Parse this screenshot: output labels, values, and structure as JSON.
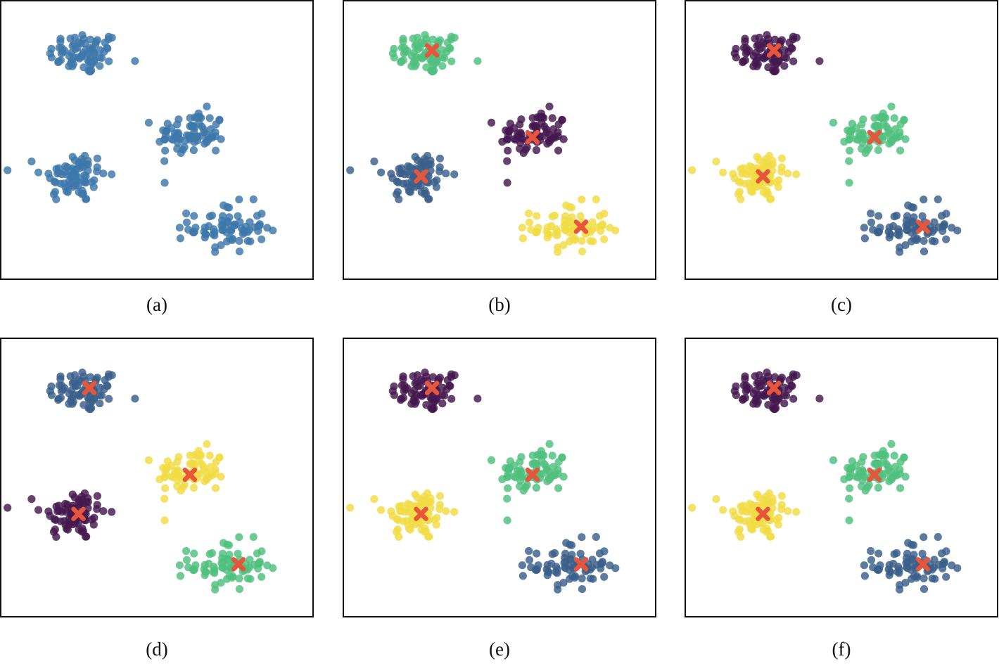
{
  "colors": {
    "viridis_purple": "#44194f",
    "viridis_blue": "#3a5f8a",
    "viridis_green": "#4fbf7e",
    "viridis_yellow": "#f1dc46",
    "raw_blue": "#3d77aa",
    "centroid": "#e8553a"
  },
  "chart_data": [
    {
      "type": "scatter",
      "caption": "(a)",
      "xlim": [
        0,
        10
      ],
      "ylim": [
        0,
        10
      ],
      "grid": false,
      "legend": "none",
      "series": [
        {
          "color_key": "raw_blue",
          "cluster": 0
        },
        {
          "color_key": "raw_blue",
          "cluster": 1
        },
        {
          "color_key": "raw_blue",
          "cluster": 2
        },
        {
          "color_key": "raw_blue",
          "cluster": 3
        }
      ],
      "centroids": []
    },
    {
      "type": "scatter",
      "caption": "(b)",
      "xlim": [
        0,
        10
      ],
      "ylim": [
        0,
        10
      ],
      "grid": false,
      "legend": "none",
      "series": [
        {
          "color_key": "viridis_green",
          "cluster": 0
        },
        {
          "color_key": "viridis_blue",
          "cluster": 1
        },
        {
          "color_key": "viridis_purple",
          "cluster": 2
        },
        {
          "color_key": "viridis_yellow",
          "cluster": 3
        }
      ],
      "centroids": [
        [
          2.85,
          8.2
        ],
        [
          2.5,
          3.7
        ],
        [
          6.05,
          5.1
        ],
        [
          7.6,
          1.9
        ]
      ]
    },
    {
      "type": "scatter",
      "caption": "(c)",
      "xlim": [
        0,
        10
      ],
      "ylim": [
        0,
        10
      ],
      "grid": false,
      "legend": "none",
      "series": [
        {
          "color_key": "viridis_purple",
          "cluster": 0
        },
        {
          "color_key": "viridis_yellow",
          "cluster": 1
        },
        {
          "color_key": "viridis_green",
          "cluster": 2
        },
        {
          "color_key": "viridis_blue",
          "cluster": 3
        }
      ],
      "centroids": [
        [
          2.85,
          8.2
        ],
        [
          2.5,
          3.7
        ],
        [
          6.05,
          5.1
        ],
        [
          7.6,
          1.9
        ]
      ]
    },
    {
      "type": "scatter",
      "caption": "(d)",
      "xlim": [
        0,
        10
      ],
      "ylim": [
        0,
        10
      ],
      "grid": false,
      "legend": "none",
      "series": [
        {
          "color_key": "viridis_blue",
          "cluster": 0
        },
        {
          "color_key": "viridis_purple",
          "cluster": 1
        },
        {
          "color_key": "viridis_yellow",
          "cluster": 2
        },
        {
          "color_key": "viridis_green",
          "cluster": 3
        }
      ],
      "centroids": [
        [
          2.85,
          8.2
        ],
        [
          2.5,
          3.7
        ],
        [
          6.05,
          5.1
        ],
        [
          7.6,
          1.9
        ]
      ]
    },
    {
      "type": "scatter",
      "caption": "(e)",
      "xlim": [
        0,
        10
      ],
      "ylim": [
        0,
        10
      ],
      "grid": false,
      "legend": "none",
      "series": [
        {
          "color_key": "viridis_purple",
          "cluster": 0
        },
        {
          "color_key": "viridis_yellow",
          "cluster": 1
        },
        {
          "color_key": "viridis_green",
          "cluster": 2
        },
        {
          "color_key": "viridis_blue",
          "cluster": 3
        }
      ],
      "centroids": [
        [
          2.85,
          8.2
        ],
        [
          2.5,
          3.7
        ],
        [
          6.05,
          5.1
        ],
        [
          7.6,
          1.9
        ]
      ]
    },
    {
      "type": "scatter",
      "caption": "(f)",
      "xlim": [
        0,
        10
      ],
      "ylim": [
        0,
        10
      ],
      "grid": false,
      "legend": "none",
      "series": [
        {
          "color_key": "viridis_purple",
          "cluster": 0
        },
        {
          "color_key": "viridis_yellow",
          "cluster": 1
        },
        {
          "color_key": "viridis_green",
          "cluster": 2
        },
        {
          "color_key": "viridis_blue",
          "cluster": 3
        }
      ],
      "centroids": [
        [
          2.85,
          8.2
        ],
        [
          2.5,
          3.7
        ],
        [
          6.05,
          5.1
        ],
        [
          7.6,
          1.9
        ]
      ]
    }
  ],
  "clusters": [
    {
      "center": [
        2.7,
        8.1
      ],
      "spread": [
        1.05,
        0.7
      ],
      "points": 75
    },
    {
      "center": [
        2.35,
        3.7
      ],
      "spread": [
        0.95,
        0.85
      ],
      "points": 75
    },
    {
      "center": [
        6.1,
        5.2
      ],
      "spread": [
        1.0,
        0.75
      ],
      "points": 75
    },
    {
      "center": [
        7.25,
        1.85
      ],
      "spread": [
        1.1,
        0.8
      ],
      "points": 75
    }
  ]
}
